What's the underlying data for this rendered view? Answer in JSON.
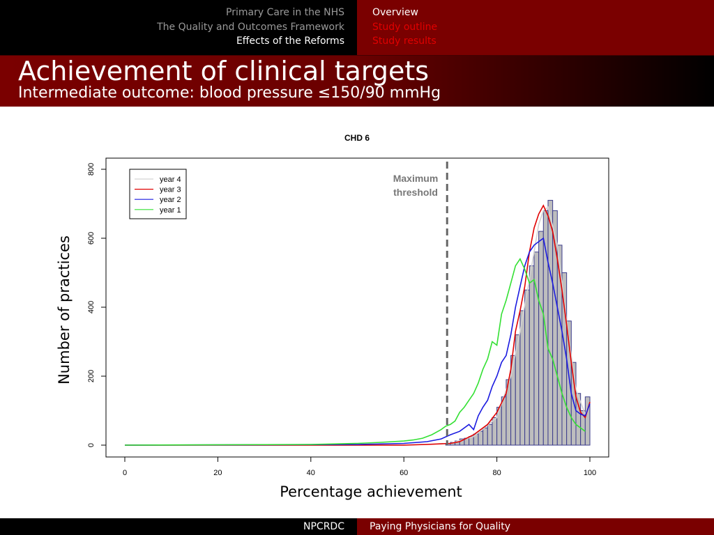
{
  "nav": {
    "sections": [
      "Primary Care in the NHS",
      "The Quality and Outcomes Framework",
      "Effects of the Reforms"
    ],
    "subsections": [
      "Overview",
      "Study outline",
      "Study results"
    ]
  },
  "slide": {
    "title": "Achievement of clinical targets",
    "subtitle": "Intermediate outcome: blood pressure ≤150/90 mmHg"
  },
  "footer": {
    "org": "NPCRDC",
    "title": "Paying Physicians for Quality"
  },
  "colors": {
    "dark_red": "#7a0000",
    "histogram_fill": "#bebebe",
    "histogram_stroke": "#3c3c8c"
  },
  "chart_data": {
    "type": "histogram+line",
    "title": "CHD 6",
    "xlabel": "Percentage achievement",
    "ylabel": "Number of practices",
    "xlim": [
      0,
      100
    ],
    "ylim": [
      0,
      800
    ],
    "xticks": [
      0,
      20,
      40,
      60,
      80,
      100
    ],
    "yticks": [
      0,
      200,
      400,
      600,
      800
    ],
    "grid": false,
    "legend_position": "top-left",
    "annotation": {
      "text": [
        "Maximum",
        "threshold"
      ],
      "x": 69.3
    },
    "histogram": {
      "bin_width": 1,
      "bins_start": [
        69,
        70,
        71,
        72,
        73,
        74,
        75,
        76,
        77,
        78,
        79,
        80,
        81,
        82,
        83,
        84,
        85,
        86,
        87,
        88,
        89,
        90,
        91,
        92,
        93,
        94,
        95,
        96,
        97,
        98,
        99
      ],
      "counts": [
        5,
        8,
        12,
        18,
        20,
        25,
        32,
        40,
        50,
        60,
        80,
        110,
        140,
        190,
        260,
        320,
        390,
        450,
        520,
        560,
        620,
        680,
        710,
        680,
        580,
        500,
        360,
        240,
        150,
        100,
        140
      ]
    },
    "series": [
      {
        "name": "year 4",
        "color": "#d3d3d3",
        "x": [
          0,
          60,
          70,
          75,
          80,
          83,
          85,
          87,
          89,
          90,
          91,
          93,
          95,
          97,
          99,
          100
        ],
        "y": [
          0,
          0,
          5,
          25,
          80,
          200,
          330,
          480,
          640,
          680,
          690,
          580,
          360,
          160,
          90,
          120
        ]
      },
      {
        "name": "year 3",
        "color": "#e00000",
        "x": [
          0,
          60,
          65,
          70,
          72,
          75,
          78,
          80,
          82,
          83,
          84,
          85,
          86,
          87,
          88,
          89,
          90,
          91,
          92,
          93,
          94,
          95,
          96,
          97,
          98,
          99,
          100
        ],
        "y": [
          0,
          0,
          2,
          5,
          10,
          30,
          60,
          95,
          150,
          220,
          330,
          390,
          460,
          560,
          630,
          670,
          695,
          665,
          620,
          540,
          450,
          350,
          240,
          140,
          95,
          80,
          125
        ]
      },
      {
        "name": "year 2",
        "color": "#1a1ae0",
        "x": [
          0,
          50,
          60,
          65,
          68,
          70,
          72,
          74,
          75,
          76,
          77,
          78,
          79,
          80,
          81,
          82,
          83,
          84,
          85,
          86,
          87,
          88,
          89,
          90,
          91,
          92,
          93,
          94,
          95,
          96,
          97,
          98,
          99,
          100
        ],
        "y": [
          0,
          2,
          5,
          10,
          18,
          30,
          40,
          60,
          45,
          85,
          110,
          130,
          170,
          200,
          240,
          260,
          320,
          400,
          460,
          520,
          560,
          580,
          590,
          600,
          530,
          470,
          400,
          330,
          250,
          150,
          100,
          90,
          85,
          120
        ]
      },
      {
        "name": "year 1",
        "color": "#33e033",
        "x": [
          0,
          40,
          50,
          55,
          60,
          62,
          64,
          66,
          68,
          69,
          70,
          71,
          72,
          73,
          74,
          75,
          76,
          77,
          78,
          79,
          80,
          81,
          82,
          83,
          84,
          85,
          86,
          87,
          88,
          89,
          90,
          91,
          92,
          93,
          94,
          95,
          96,
          97,
          98,
          99
        ],
        "y": [
          0,
          2,
          5,
          8,
          12,
          15,
          20,
          30,
          45,
          55,
          60,
          70,
          95,
          110,
          130,
          150,
          180,
          220,
          250,
          300,
          290,
          380,
          420,
          470,
          520,
          540,
          510,
          470,
          480,
          420,
          380,
          280,
          250,
          200,
          150,
          110,
          80,
          60,
          50,
          40
        ]
      }
    ]
  }
}
